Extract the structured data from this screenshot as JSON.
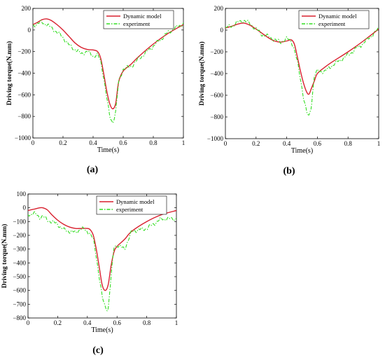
{
  "chart_data": [
    {
      "type": "line",
      "panel_label": "(a)",
      "xlabel": "Time(s)",
      "ylabel": "Driving torque(N.mm)",
      "xlim": [
        0,
        1
      ],
      "ylim": [
        -1000,
        200
      ],
      "xticks": [
        "0",
        "0.2",
        "0.4",
        "0.6",
        "0.8",
        "1"
      ],
      "yticks": [
        "200",
        "0",
        "−200",
        "−400",
        "−600",
        "−800",
        "−1000"
      ],
      "legend_position": "top-right",
      "series": [
        {
          "name": "Dynamic model",
          "color": "#d8202e",
          "style": "solid",
          "x": [
            0,
            0.03,
            0.06,
            0.09,
            0.12,
            0.16,
            0.2,
            0.24,
            0.28,
            0.32,
            0.36,
            0.4,
            0.43,
            0.45,
            0.47,
            0.49,
            0.51,
            0.53,
            0.55,
            0.57,
            0.6,
            0.65,
            0.7,
            0.8,
            0.9,
            1.0
          ],
          "y": [
            50,
            70,
            95,
            103,
            90,
            50,
            0,
            -60,
            -120,
            -160,
            -180,
            -185,
            -200,
            -260,
            -400,
            -560,
            -680,
            -730,
            -680,
            -480,
            -380,
            -320,
            -250,
            -130,
            -30,
            50
          ]
        },
        {
          "name": "experiment",
          "color": "#33dd22",
          "style": "dash-dot",
          "x": [
            0,
            0.03,
            0.06,
            0.09,
            0.12,
            0.16,
            0.2,
            0.24,
            0.28,
            0.32,
            0.36,
            0.4,
            0.43,
            0.45,
            0.47,
            0.49,
            0.51,
            0.53,
            0.55,
            0.57,
            0.6,
            0.65,
            0.7,
            0.8,
            0.9,
            1.0
          ],
          "y": [
            40,
            60,
            70,
            55,
            20,
            -20,
            -70,
            -140,
            -180,
            -220,
            -200,
            -240,
            -230,
            -290,
            -430,
            -620,
            -800,
            -860,
            -760,
            -480,
            -360,
            -340,
            -270,
            -150,
            -20,
            60
          ]
        }
      ]
    },
    {
      "type": "line",
      "panel_label": "(b)",
      "xlabel": "Time(s)",
      "ylabel": "Driving torque(N.mm)",
      "xlim": [
        0,
        1
      ],
      "ylim": [
        -1000,
        200
      ],
      "xticks": [
        "0",
        "0.2",
        "0.4",
        "0.6",
        "0.8",
        "1"
      ],
      "yticks": [
        "200",
        "0",
        "−200",
        "−400",
        "−600",
        "−800",
        "−1000"
      ],
      "legend_position": "top-right",
      "series": [
        {
          "name": "Dynamic model",
          "color": "#d8202e",
          "style": "solid",
          "x": [
            0,
            0.04,
            0.08,
            0.12,
            0.16,
            0.2,
            0.24,
            0.28,
            0.32,
            0.36,
            0.4,
            0.43,
            0.45,
            0.47,
            0.49,
            0.51,
            0.53,
            0.545,
            0.56,
            0.58,
            0.6,
            0.65,
            0.7,
            0.8,
            0.9,
            1.0
          ],
          "y": [
            20,
            35,
            55,
            65,
            45,
            10,
            -30,
            -70,
            -100,
            -110,
            -100,
            -90,
            -130,
            -250,
            -380,
            -490,
            -570,
            -590,
            -540,
            -470,
            -400,
            -340,
            -290,
            -200,
            -100,
            10
          ]
        },
        {
          "name": "experiment",
          "color": "#33dd22",
          "style": "dash-dot",
          "x": [
            0,
            0.04,
            0.08,
            0.12,
            0.16,
            0.2,
            0.24,
            0.28,
            0.32,
            0.36,
            0.4,
            0.43,
            0.45,
            0.47,
            0.49,
            0.51,
            0.53,
            0.545,
            0.56,
            0.58,
            0.6,
            0.65,
            0.7,
            0.8,
            0.9,
            1.0
          ],
          "y": [
            20,
            40,
            70,
            90,
            60,
            10,
            -40,
            -60,
            -90,
            -110,
            -80,
            -100,
            -180,
            -300,
            -450,
            -620,
            -760,
            -800,
            -700,
            -420,
            -380,
            -380,
            -320,
            -230,
            -120,
            10
          ]
        }
      ]
    },
    {
      "type": "line",
      "panel_label": "(c)",
      "xlabel": "Time(s)",
      "ylabel": "Driving torque(N.mm)",
      "xlim": [
        0,
        1
      ],
      "ylim": [
        -800,
        100
      ],
      "xticks": [
        "0",
        "0.2",
        "0.4",
        "0.6",
        "0.8",
        "1"
      ],
      "yticks": [
        "100",
        "0",
        "−100",
        "−200",
        "−300",
        "−400",
        "−500",
        "−600",
        "−700",
        "−800"
      ],
      "legend_position": "top-right",
      "series": [
        {
          "name": "Dynamic model",
          "color": "#d8202e",
          "style": "solid",
          "x": [
            0,
            0.04,
            0.08,
            0.1,
            0.13,
            0.16,
            0.2,
            0.24,
            0.28,
            0.32,
            0.36,
            0.4,
            0.42,
            0.44,
            0.46,
            0.48,
            0.5,
            0.52,
            0.54,
            0.56,
            0.58,
            0.6,
            0.65,
            0.7,
            0.8,
            0.9,
            1.0
          ],
          "y": [
            -20,
            -10,
            0,
            0,
            -15,
            -50,
            -90,
            -120,
            -140,
            -150,
            -150,
            -150,
            -160,
            -200,
            -300,
            -430,
            -560,
            -600,
            -560,
            -420,
            -320,
            -280,
            -230,
            -170,
            -100,
            -50,
            -20
          ]
        },
        {
          "name": "experiment",
          "color": "#33dd22",
          "style": "dash-dot",
          "x": [
            0,
            0.04,
            0.08,
            0.1,
            0.13,
            0.16,
            0.2,
            0.24,
            0.28,
            0.32,
            0.36,
            0.4,
            0.42,
            0.44,
            0.46,
            0.48,
            0.5,
            0.52,
            0.54,
            0.56,
            0.58,
            0.6,
            0.65,
            0.7,
            0.8,
            0.9,
            1.0
          ],
          "y": [
            -50,
            -40,
            -70,
            -60,
            -90,
            -100,
            -120,
            -160,
            -170,
            -180,
            -150,
            -170,
            -190,
            -230,
            -350,
            -500,
            -650,
            -720,
            -740,
            -500,
            -280,
            -270,
            -300,
            -170,
            -150,
            -80,
            -80
          ]
        }
      ]
    }
  ]
}
